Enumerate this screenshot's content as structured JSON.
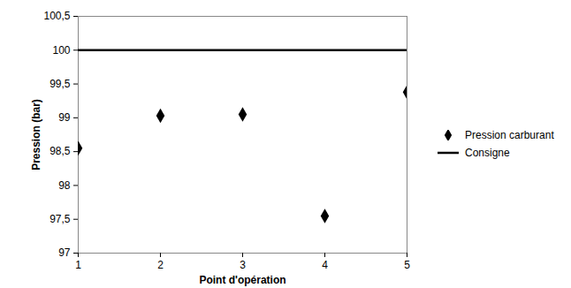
{
  "chart_data": {
    "type": "scatter",
    "x_label": "Point d'opération",
    "y_label": "Pression (bar)",
    "x": [
      1,
      2,
      3,
      4,
      5
    ],
    "series": [
      {
        "name": "Pression carburant",
        "type": "scatter",
        "marker": "diamond",
        "color": "#000000",
        "values": [
          98.55,
          99.03,
          99.05,
          97.55,
          99.38
        ]
      },
      {
        "name": "Consigne",
        "type": "line",
        "line_style": "solid",
        "color": "#000000",
        "values": [
          100,
          100,
          100,
          100,
          100
        ]
      }
    ],
    "xlim": [
      1,
      5
    ],
    "xticks": [
      1,
      2,
      3,
      4,
      5
    ],
    "ylim": [
      97,
      100.5
    ],
    "yticks": [
      97,
      {
        "value": 97.5,
        "label": "97,5"
      },
      98,
      {
        "value": 98.5,
        "label": "98,5"
      },
      99,
      {
        "value": 99.5,
        "label": "99,5"
      },
      100,
      {
        "value": 100.5,
        "label": "100,5"
      }
    ],
    "grid": false,
    "legend": "right"
  }
}
